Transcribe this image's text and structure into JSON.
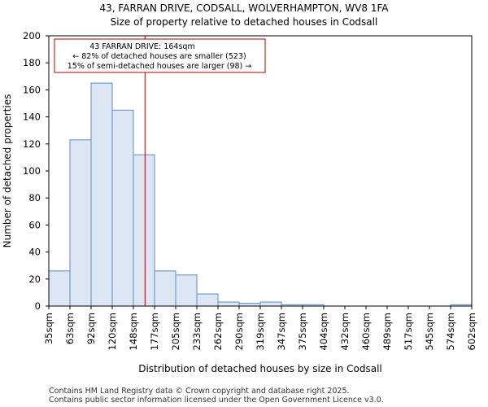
{
  "chart_data": {
    "type": "bar",
    "title": "43, FARRAN DRIVE, CODSALL, WOLVERHAMPTON, WV8 1FA",
    "subtitle": "Size of property relative to detached houses in Codsall",
    "xlabel": "Distribution of detached houses by size in Codsall",
    "ylabel": "Number of detached properties",
    "ylim": [
      0,
      200
    ],
    "yticks": [
      "0",
      "20",
      "40",
      "60",
      "80",
      "100",
      "120",
      "140",
      "160",
      "180",
      "200"
    ],
    "bin_edges": [
      "35sqm",
      "63sqm",
      "92sqm",
      "120sqm",
      "148sqm",
      "177sqm",
      "205sqm",
      "233sqm",
      "262sqm",
      "290sqm",
      "319sqm",
      "347sqm",
      "375sqm",
      "404sqm",
      "432sqm",
      "460sqm",
      "489sqm",
      "517sqm",
      "545sqm",
      "574sqm",
      "602sqm"
    ],
    "values": [
      26,
      123,
      165,
      145,
      112,
      26,
      23,
      9,
      3,
      2,
      3,
      1,
      1,
      0,
      0,
      0,
      0,
      0,
      0,
      1
    ],
    "bar_color": "#dce6f4",
    "bar_edge_color": "#5f8ac7",
    "marker_color": "#b30000",
    "marker_value": 164,
    "marker_bin": 4,
    "marker_bin_fraction": 0.55,
    "grid": false,
    "annotation": {
      "line1": "43 FARRAN DRIVE: 164sqm",
      "line2": "← 82% of detached houses are smaller (523)",
      "line3": "15% of semi-detached houses are larger (98) →"
    }
  },
  "footer": {
    "line1": "Contains HM Land Registry data © Crown copyright and database right 2025.",
    "line2": "Contains public sector information licensed under the Open Government Licence v3.0."
  }
}
